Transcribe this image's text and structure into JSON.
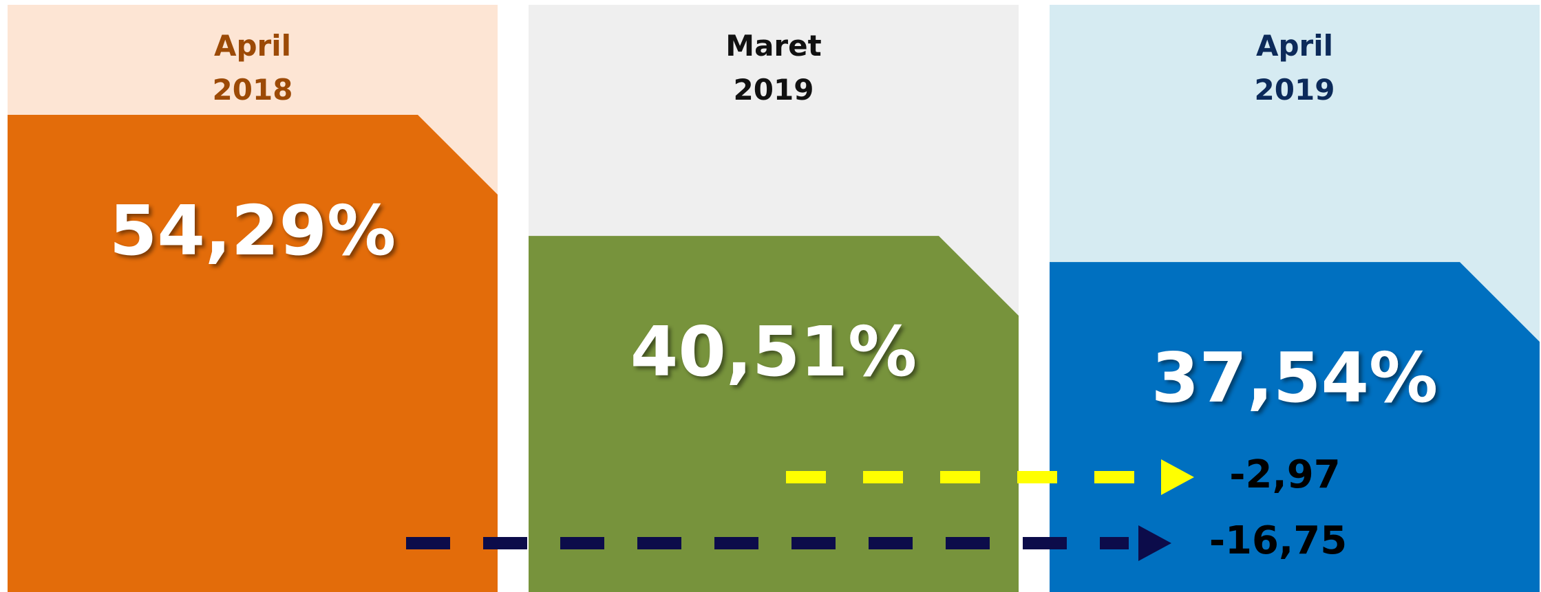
{
  "chart_data": {
    "type": "bar",
    "categories": [
      "April 2018",
      "Maret 2019",
      "April 2019"
    ],
    "values": [
      54.29,
      40.51,
      37.54
    ],
    "value_labels": [
      "54,29%",
      "40,51%",
      "37,54%"
    ],
    "colors": [
      "#e36c0a",
      "#77933c",
      "#0070c0"
    ],
    "annotations": [
      {
        "value": -2.97,
        "label": "-2,97",
        "color": "#ffff00"
      },
      {
        "value": -16.75,
        "label": "-16,75",
        "color": "#0c0c4a"
      }
    ]
  }
}
